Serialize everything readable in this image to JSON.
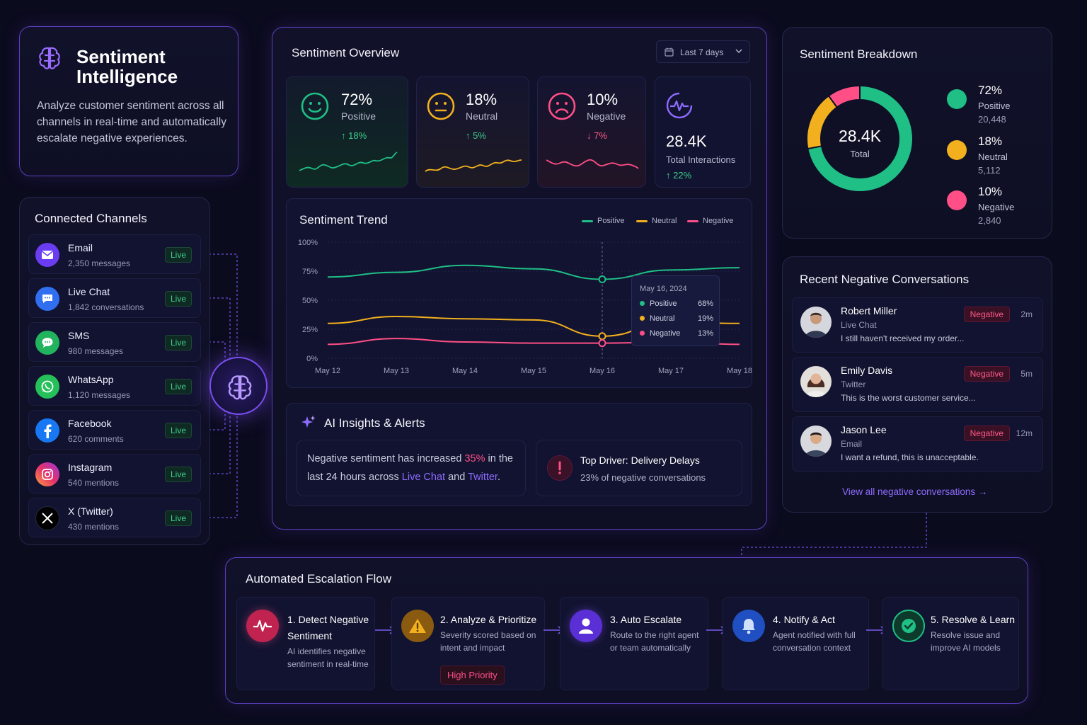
{
  "colors": {
    "positive": "#1fbf86",
    "neutral": "#f2b01e",
    "negative": "#ff4f86",
    "accent": "#8e6cff",
    "background": "#0b0b1e"
  },
  "intro": {
    "icon": "brain-icon",
    "title": "Sentiment Intelligence",
    "description": "Analyze customer sentiment across all channels in real-time and automatically escalate negative experiences."
  },
  "channels": {
    "title": "Connected Channels",
    "items": [
      {
        "name": "Email",
        "count": "2,350 messages",
        "status": "Live",
        "icon": "email-icon"
      },
      {
        "name": "Live Chat",
        "count": "1,842 conversations",
        "status": "Live",
        "icon": "chat-bubble-icon"
      },
      {
        "name": "SMS",
        "count": "980 messages",
        "status": "Live",
        "icon": "sms-icon"
      },
      {
        "name": "WhatsApp",
        "count": "1,120 messages",
        "status": "Live",
        "icon": "whatsapp-icon"
      },
      {
        "name": "Facebook",
        "count": "620 comments",
        "status": "Live",
        "icon": "facebook-icon"
      },
      {
        "name": "Instagram",
        "count": "540 mentions",
        "status": "Live",
        "icon": "instagram-icon"
      },
      {
        "name": "X (Twitter)",
        "count": "430 mentions",
        "status": "Live",
        "icon": "x-twitter-icon"
      }
    ]
  },
  "overview": {
    "title": "Sentiment Overview",
    "range": "Last 7 days",
    "stats": [
      {
        "value": "72%",
        "label": "Positive",
        "change": "18%",
        "direction": "up"
      },
      {
        "value": "18%",
        "label": "Neutral",
        "change": "5%",
        "direction": "up"
      },
      {
        "value": "10%",
        "label": "Negative",
        "change": "7%",
        "direction": "down"
      },
      {
        "value": "28.4K",
        "label": "Total Interactions",
        "change": "22%",
        "direction": "up"
      }
    ]
  },
  "trend": {
    "title": "Sentiment Trend",
    "legend": [
      "Positive",
      "Neutral",
      "Negative"
    ],
    "y_ticks": [
      "100%",
      "75%",
      "50%",
      "25%",
      "0%"
    ],
    "x_ticks": [
      "May 12",
      "May 13",
      "May 14",
      "May 15",
      "May 16",
      "May 17",
      "May 18"
    ],
    "tooltip": {
      "date": "May 16, 2024",
      "rows": [
        {
          "label": "Positive",
          "value": "68%"
        },
        {
          "label": "Neutral",
          "value": "19%"
        },
        {
          "label": "Negative",
          "value": "13%"
        }
      ]
    }
  },
  "chart_data": {
    "type": "line",
    "x": [
      "May 12",
      "May 13",
      "May 14",
      "May 15",
      "May 16",
      "May 17",
      "May 18"
    ],
    "ylim": [
      0,
      100
    ],
    "series": [
      {
        "name": "Positive",
        "values": [
          70,
          74,
          80,
          77,
          68,
          76,
          78
        ]
      },
      {
        "name": "Neutral",
        "values": [
          30,
          36,
          34,
          33,
          19,
          31,
          30
        ]
      },
      {
        "name": "Negative",
        "values": [
          12,
          17,
          14,
          13,
          13,
          14,
          12
        ]
      }
    ]
  },
  "insights": {
    "title": "AI Insights & Alerts",
    "alert": {
      "pre": "Negative sentiment has increased ",
      "pct": "35%",
      "mid": " in the last 24 hours across ",
      "ch1": "Live Chat",
      "and": " and ",
      "ch2": "Twitter",
      "end": "."
    },
    "driver": {
      "title": "Top Driver: Delivery Delays",
      "detail": "23% of negative conversations"
    }
  },
  "breakdown": {
    "title": "Sentiment Breakdown",
    "total": "28.4K",
    "total_label": "Total",
    "items": [
      {
        "pct": "72%",
        "label": "Positive",
        "count": "20,448"
      },
      {
        "pct": "18%",
        "label": "Neutral",
        "count": "5,112"
      },
      {
        "pct": "10%",
        "label": "Negative",
        "count": "2,840"
      }
    ]
  },
  "recent": {
    "title": "Recent Negative Conversations",
    "items": [
      {
        "name": "Robert Miller",
        "channel": "Live Chat",
        "message": "I still haven't received my order...",
        "tag": "Negative",
        "time": "2m"
      },
      {
        "name": "Emily Davis",
        "channel": "Twitter",
        "message": "This is the worst customer service...",
        "tag": "Negative",
        "time": "5m"
      },
      {
        "name": "Jason Lee",
        "channel": "Email",
        "message": "I want a refund, this is unacceptable.",
        "tag": "Negative",
        "time": "12m"
      }
    ],
    "view_all": "View all negative conversations"
  },
  "flow": {
    "title": "Automated Escalation Flow",
    "steps": [
      {
        "title1": "1. Detect Negative",
        "title2": "Sentiment",
        "desc1": "AI identifies negative",
        "desc2": "sentiment in real-time",
        "icon": "pulse-icon"
      },
      {
        "title1": "2. Analyze & Prioritize",
        "title2": "",
        "desc1": "Severity scored based on",
        "desc2": "intent and impact",
        "icon": "warning-icon",
        "badge": "High Priority"
      },
      {
        "title1": "3. Auto Escalate",
        "title2": "",
        "desc1": "Route to the right agent",
        "desc2": "or team automatically",
        "icon": "user-icon"
      },
      {
        "title1": "4. Notify & Act",
        "title2": "",
        "desc1": "Agent notified with full",
        "desc2": "conversation context",
        "icon": "bell-icon"
      },
      {
        "title1": "5. Resolve & Learn",
        "title2": "",
        "desc1": "Resolve issue and",
        "desc2": "improve AI models",
        "icon": "check-circle-icon"
      }
    ]
  }
}
